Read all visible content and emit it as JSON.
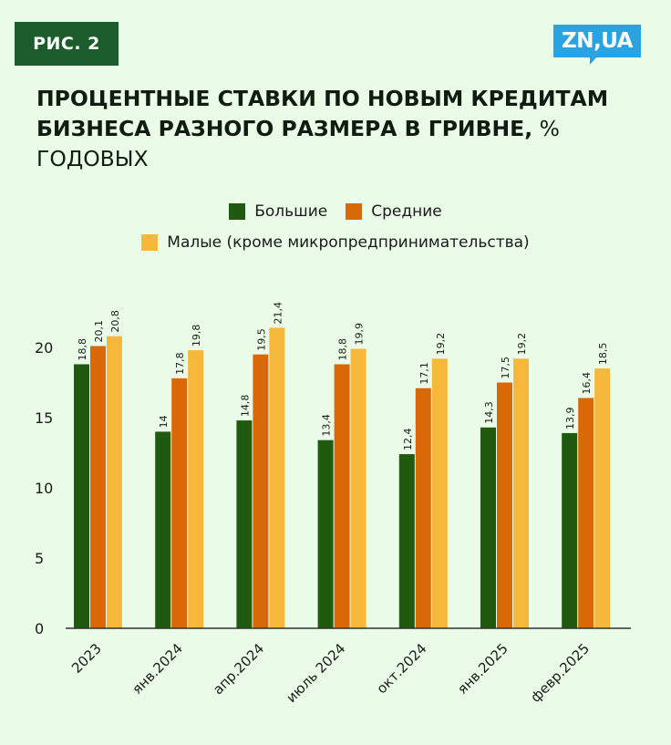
{
  "badge": "РИС. 2",
  "logo": "ZN,UA",
  "title_bold": "ПРОЦЕНТНЫЕ СТАВКИ ПО НОВЫМ КРЕДИТАМ БИЗНЕСА РАЗНОГО РАЗМЕРА В ГРИВНЕ,",
  "title_light": " % ГОДОВЫХ",
  "colors": {
    "large": "#1f5a0f",
    "medium": "#d96808",
    "small": "#f6b73a",
    "axis": "#333333"
  },
  "chart_data": {
    "type": "bar",
    "categories": [
      "2023",
      "янв.2024",
      "апр.2024",
      "июль 2024",
      "окт.2024",
      "янв.2025",
      "февр.2025"
    ],
    "series": [
      {
        "name": "Большие",
        "values": [
          18.8,
          14,
          14.8,
          13.4,
          12.4,
          14.3,
          13.9
        ],
        "labels": [
          "18,8",
          "14",
          "14,8",
          "13,4",
          "12,4",
          "14,3",
          "13,9"
        ]
      },
      {
        "name": "Средние",
        "values": [
          20.1,
          17.8,
          19.5,
          18.8,
          17.1,
          17.5,
          16.4
        ],
        "labels": [
          "20,1",
          "17,8",
          "19,5",
          "18,8",
          "17,1",
          "17,5",
          "16,4"
        ]
      },
      {
        "name": "Малые (кроме микропредпринимательства)",
        "values": [
          20.8,
          19.8,
          21.4,
          19.9,
          19.2,
          19.2,
          18.5
        ],
        "labels": [
          "20,8",
          "19,8",
          "21,4",
          "19,9",
          "19,2",
          "19,2",
          "18,5"
        ]
      }
    ],
    "yticks": [
      "0",
      "5",
      "10",
      "15",
      "20"
    ],
    "ylim": [
      0,
      21.4
    ],
    "legend_position": "top-center"
  }
}
